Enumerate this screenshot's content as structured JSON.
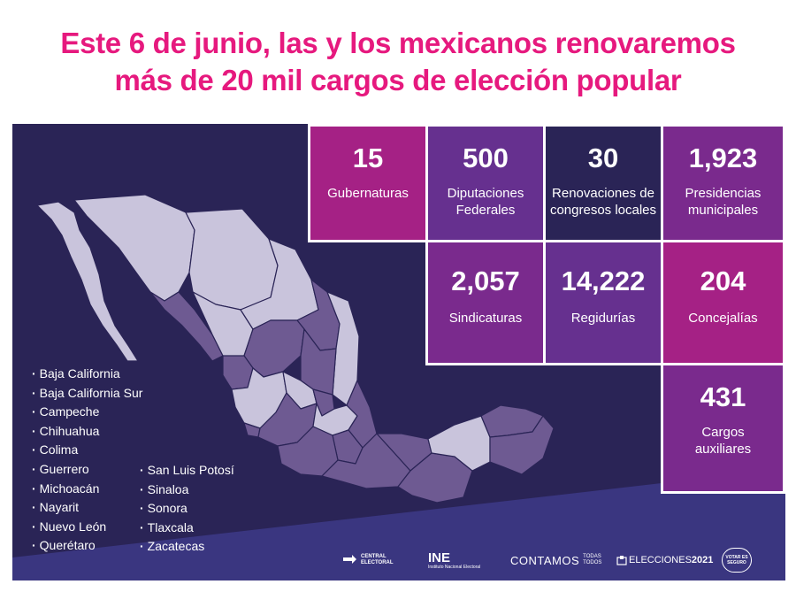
{
  "headline": {
    "line1": "Este 6 de junio, las y los mexicanos renovaremos",
    "line2": "más de 20 mil cargos de elección popular"
  },
  "colors": {
    "headline": "#e6197e",
    "panel": "#2a2456",
    "magenta_tile": "#a52185",
    "purple_tile": "#66308f",
    "navy_tile": "#2a2456",
    "bottom_band": "#3a3680",
    "map_light": "#c9c4dc",
    "map_dark": "#6e5a92"
  },
  "tiles": [
    {
      "value": "15",
      "label": "Gubernaturas"
    },
    {
      "value": "500",
      "label": "Diputaciones Federales"
    },
    {
      "value": "30",
      "label": "Renovaciones de congresos locales"
    },
    {
      "value": "1,923",
      "label": "Presidencias municipales"
    },
    {
      "value": "2,057",
      "label": "Sindicaturas"
    },
    {
      "value": "14,222",
      "label": "Regidurías"
    },
    {
      "value": "204",
      "label": "Concejalías"
    },
    {
      "value": "431",
      "label": "Cargos auxiliares"
    }
  ],
  "states_col1": [
    "Baja California",
    "Baja California Sur",
    "Campeche",
    "Chihuahua",
    "Colima",
    "Guerrero",
    "Michoacán",
    "Nayarit",
    "Nuevo León",
    "Querétaro"
  ],
  "states_col2": [
    "San Luis Potosí",
    "Sinaloa",
    "Sonora",
    "Tlaxcala",
    "Zacatecas"
  ],
  "logos": {
    "central_electoral": "CENTRAL ELECTORAL",
    "ine": "INE",
    "ine_sub": "Instituto Nacional Electoral",
    "contamos": "CONTAMOS",
    "contamos_sub": "TODAS TODOS",
    "elecciones": "ELECCIONES",
    "elecciones_year": "2021",
    "votar_seguro": "VOTAR ES SEGURO"
  }
}
